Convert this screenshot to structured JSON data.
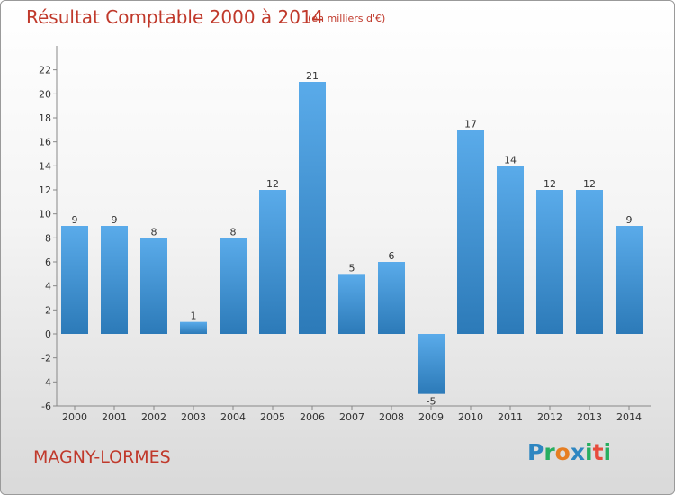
{
  "header": {
    "title": "Résultat Comptable 2000 à 2014",
    "subtitle": "(en milliers d'€)"
  },
  "footer": {
    "location": "MAGNY-LORMES",
    "logo_text": "Proxiti"
  },
  "colors": {
    "bar_top": "#5aabea",
    "bar_bottom": "#2c7ab8",
    "title": "#c0392b",
    "logo": [
      "#2e86c1",
      "#27ae60",
      "#e67e22",
      "#2e86c1",
      "#27ae60",
      "#e74c3c",
      "#27ae60"
    ]
  },
  "chart_data": {
    "type": "bar",
    "categories": [
      "2000",
      "2001",
      "2002",
      "2003",
      "2004",
      "2005",
      "2006",
      "2007",
      "2008",
      "2009",
      "2010",
      "2011",
      "2012",
      "2013",
      "2014"
    ],
    "values": [
      9,
      9,
      8,
      1,
      8,
      12,
      21,
      5,
      6,
      -5,
      17,
      14,
      12,
      12,
      9
    ],
    "data_labels": [
      "9",
      "9",
      "8",
      "1",
      "8",
      "12",
      "21",
      "5",
      "6",
      "-5",
      "17",
      "14",
      "12",
      "12",
      "9"
    ],
    "title": "Résultat Comptable 2000 à 2014",
    "xlabel": "",
    "ylabel": "",
    "ylim": [
      -6,
      24
    ],
    "yticks": [
      -6,
      -4,
      -2,
      0,
      2,
      4,
      6,
      8,
      10,
      12,
      14,
      16,
      18,
      20,
      22
    ],
    "grid": false,
    "legend": "none"
  }
}
